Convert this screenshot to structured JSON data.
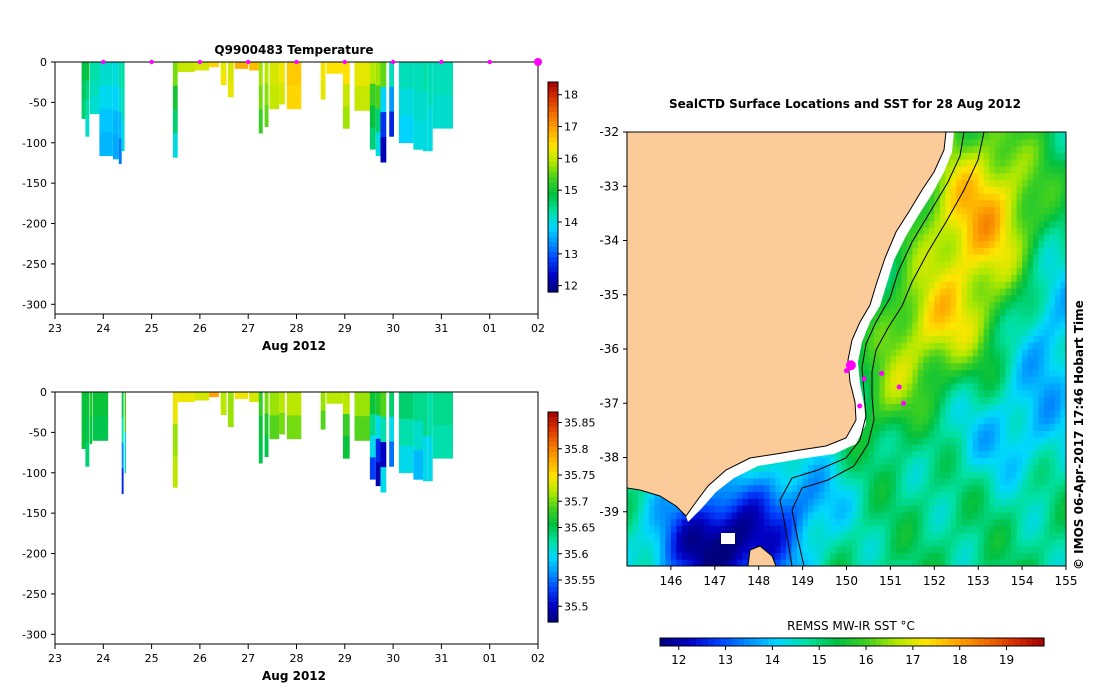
{
  "chart_data": [
    {
      "type": "heatmap",
      "title": "Q9900483  Temperature",
      "xlabel": "Aug 2012",
      "ylabel": "",
      "x_tick_labels": [
        "23",
        "24",
        "25",
        "26",
        "27",
        "28",
        "29",
        "30",
        "31",
        "01",
        "02"
      ],
      "x_days": [
        23,
        24,
        25,
        26,
        27,
        28,
        29,
        30,
        31,
        32,
        33
      ],
      "xlim": [
        23,
        33
      ],
      "y_tick_labels": [
        "0",
        "-50",
        "-100",
        "-150",
        "-200",
        "-250",
        "-300"
      ],
      "y_ticks": [
        0,
        -50,
        -100,
        -150,
        -200,
        -250,
        -300
      ],
      "ylim": [
        -312,
        0
      ],
      "profile_markers_day": [
        24,
        25,
        26,
        27,
        28,
        29,
        30,
        31,
        32,
        33
      ],
      "colorbar": {
        "tick_labels": [
          "12",
          "13",
          "14",
          "15",
          "16",
          "17",
          "18"
        ],
        "ticks": [
          12,
          13,
          14,
          15,
          16,
          17,
          18
        ],
        "range": [
          11.8,
          18.4
        ]
      },
      "profiles": [
        {
          "day": 23.55,
          "w": 0.08,
          "depth": 70,
          "values": [
            14.8,
            14.7,
            14.6
          ]
        },
        {
          "day": 23.63,
          "w": 0.08,
          "depth": 92,
          "values": [
            14.9,
            14.5,
            14.3,
            14.1
          ]
        },
        {
          "day": 23.72,
          "w": 0.2,
          "depth": 64,
          "values": [
            14.3,
            14.2,
            14.1
          ]
        },
        {
          "day": 23.92,
          "w": 0.28,
          "depth": 116,
          "values": [
            14.1,
            13.9,
            13.7,
            13.6
          ]
        },
        {
          "day": 24.2,
          "w": 0.12,
          "depth": 120,
          "values": [
            14.0,
            13.8,
            13.6,
            13.5
          ]
        },
        {
          "day": 24.32,
          "w": 0.06,
          "depth": 126,
          "values": [
            14.3,
            14.1,
            13.6,
            13.2
          ]
        },
        {
          "day": 24.38,
          "w": 0.06,
          "depth": 110,
          "values": [
            14.3,
            14.2,
            14.0
          ]
        },
        {
          "day": 25.44,
          "w": 0.1,
          "depth": 118,
          "values": [
            15.6,
            15.0,
            14.6,
            14.0
          ]
        },
        {
          "day": 25.54,
          "w": 0.35,
          "depth": 12,
          "values": [
            16.0
          ]
        },
        {
          "day": 25.89,
          "w": 0.3,
          "depth": 10,
          "values": [
            16.1
          ]
        },
        {
          "day": 26.19,
          "w": 0.2,
          "depth": 6,
          "values": [
            16.5
          ]
        },
        {
          "day": 26.43,
          "w": 0.12,
          "depth": 28,
          "values": [
            16.2,
            16.3
          ]
        },
        {
          "day": 26.58,
          "w": 0.12,
          "depth": 43,
          "values": [
            16.1,
            16.2
          ]
        },
        {
          "day": 26.72,
          "w": 0.28,
          "depth": 8,
          "values": [
            16.8
          ]
        },
        {
          "day": 27.02,
          "w": 0.2,
          "depth": 10,
          "values": [
            16.7
          ]
        },
        {
          "day": 27.22,
          "w": 0.08,
          "depth": 88,
          "values": [
            15.8,
            15.6,
            15.3
          ]
        },
        {
          "day": 27.34,
          "w": 0.08,
          "depth": 80,
          "values": [
            15.9,
            15.7,
            15.5
          ]
        },
        {
          "day": 27.44,
          "w": 0.2,
          "depth": 58,
          "values": [
            16.1,
            16.0
          ]
        },
        {
          "day": 27.64,
          "w": 0.12,
          "depth": 52,
          "values": [
            16.3,
            16.1
          ]
        },
        {
          "day": 27.8,
          "w": 0.3,
          "depth": 58,
          "values": [
            16.6,
            16.5
          ]
        },
        {
          "day": 28.5,
          "w": 0.1,
          "depth": 46,
          "values": [
            16.3,
            16.2
          ]
        },
        {
          "day": 28.62,
          "w": 0.34,
          "depth": 14,
          "values": [
            16.4
          ]
        },
        {
          "day": 28.96,
          "w": 0.14,
          "depth": 82,
          "values": [
            16.4,
            16.0,
            15.8
          ]
        },
        {
          "day": 29.2,
          "w": 0.32,
          "depth": 60,
          "values": [
            16.2,
            16.0
          ]
        },
        {
          "day": 29.52,
          "w": 0.12,
          "depth": 108,
          "values": [
            15.9,
            15.3,
            14.9,
            14.6
          ]
        },
        {
          "day": 29.64,
          "w": 0.1,
          "depth": 116,
          "values": [
            15.8,
            15.4,
            14.6,
            14.0
          ]
        },
        {
          "day": 29.74,
          "w": 0.12,
          "depth": 124,
          "values": [
            15.5,
            13.8,
            12.7,
            12.2
          ]
        },
        {
          "day": 29.92,
          "w": 0.1,
          "depth": 92,
          "values": [
            14.2,
            13.4,
            12.6
          ]
        },
        {
          "day": 30.12,
          "w": 0.3,
          "depth": 100,
          "values": [
            14.2,
            14.0,
            13.8
          ]
        },
        {
          "day": 30.42,
          "w": 0.2,
          "depth": 108,
          "values": [
            14.2,
            14.1,
            14.0
          ]
        },
        {
          "day": 30.62,
          "w": 0.1,
          "depth": 110,
          "values": [
            14.3,
            14.1,
            14.0
          ]
        },
        {
          "day": 30.72,
          "w": 0.1,
          "depth": 110,
          "values": [
            14.2,
            14.0
          ]
        },
        {
          "day": 30.82,
          "w": 0.42,
          "depth": 82,
          "values": [
            14.2,
            14.1
          ]
        }
      ]
    },
    {
      "type": "heatmap",
      "title": "",
      "xlabel": "Aug 2012",
      "ylabel": "",
      "x_tick_labels": [
        "23",
        "24",
        "25",
        "26",
        "27",
        "28",
        "29",
        "30",
        "31",
        "01",
        "02"
      ],
      "x_days": [
        23,
        24,
        25,
        26,
        27,
        28,
        29,
        30,
        31,
        32,
        33
      ],
      "xlim": [
        23,
        33
      ],
      "y_tick_labels": [
        "0",
        "-50",
        "-100",
        "-150",
        "-200",
        "-250",
        "-300"
      ],
      "y_ticks": [
        0,
        -50,
        -100,
        -150,
        -200,
        -250,
        -300
      ],
      "ylim": [
        -312,
        0
      ],
      "colorbar": {
        "tick_labels": [
          "35.5",
          "35.55",
          "35.6",
          "35.65",
          "35.7",
          "35.75",
          "35.8",
          "35.85"
        ],
        "ticks": [
          35.5,
          35.55,
          35.6,
          35.65,
          35.7,
          35.75,
          35.8,
          35.85
        ],
        "range": [
          35.47,
          35.87
        ]
      },
      "profiles": [
        {
          "day": 23.55,
          "w": 0.08,
          "depth": 70,
          "values": [
            35.66,
            35.66
          ]
        },
        {
          "day": 23.63,
          "w": 0.08,
          "depth": 92,
          "values": [
            35.66,
            35.65,
            35.64
          ]
        },
        {
          "day": 23.72,
          "w": 0.05,
          "depth": 64,
          "values": [
            35.67,
            35.66
          ]
        },
        {
          "day": 23.78,
          "w": 0.32,
          "depth": 60,
          "values": [
            35.66,
            35.65
          ]
        },
        {
          "day": 24.38,
          "w": 0.04,
          "depth": 126,
          "values": [
            35.65,
            35.62,
            35.56,
            35.52
          ]
        },
        {
          "day": 24.44,
          "w": 0.03,
          "depth": 100,
          "values": [
            35.69,
            35.6
          ]
        },
        {
          "day": 25.44,
          "w": 0.1,
          "depth": 118,
          "values": [
            35.74,
            35.71,
            35.72
          ]
        },
        {
          "day": 25.54,
          "w": 0.35,
          "depth": 12,
          "values": [
            35.74
          ]
        },
        {
          "day": 25.89,
          "w": 0.3,
          "depth": 10,
          "values": [
            35.73
          ]
        },
        {
          "day": 26.19,
          "w": 0.2,
          "depth": 6,
          "values": [
            35.78
          ]
        },
        {
          "day": 26.43,
          "w": 0.12,
          "depth": 28,
          "values": [
            35.72
          ]
        },
        {
          "day": 26.58,
          "w": 0.12,
          "depth": 43,
          "values": [
            35.71
          ]
        },
        {
          "day": 26.72,
          "w": 0.28,
          "depth": 8,
          "values": [
            35.74
          ]
        },
        {
          "day": 27.02,
          "w": 0.2,
          "depth": 12,
          "values": [
            35.73
          ]
        },
        {
          "day": 27.22,
          "w": 0.08,
          "depth": 88,
          "values": [
            35.68,
            35.66,
            35.65
          ]
        },
        {
          "day": 27.34,
          "w": 0.08,
          "depth": 80,
          "values": [
            35.7,
            35.67,
            35.65
          ]
        },
        {
          "day": 27.44,
          "w": 0.2,
          "depth": 58,
          "values": [
            35.71,
            35.69
          ]
        },
        {
          "day": 27.64,
          "w": 0.12,
          "depth": 52,
          "values": [
            35.72,
            35.7
          ]
        },
        {
          "day": 27.8,
          "w": 0.3,
          "depth": 58,
          "values": [
            35.72,
            35.7
          ]
        },
        {
          "day": 28.5,
          "w": 0.1,
          "depth": 46,
          "values": [
            35.71,
            35.69
          ]
        },
        {
          "day": 28.62,
          "w": 0.34,
          "depth": 14,
          "values": [
            35.72
          ]
        },
        {
          "day": 28.96,
          "w": 0.14,
          "depth": 82,
          "values": [
            35.72,
            35.68,
            35.66
          ]
        },
        {
          "day": 29.2,
          "w": 0.32,
          "depth": 60,
          "values": [
            35.71,
            35.69
          ]
        },
        {
          "day": 29.52,
          "w": 0.12,
          "depth": 108,
          "values": [
            35.66,
            35.63,
            35.6,
            35.53
          ]
        },
        {
          "day": 29.64,
          "w": 0.1,
          "depth": 116,
          "values": [
            35.67,
            35.6,
            35.52,
            35.49
          ]
        },
        {
          "day": 29.74,
          "w": 0.12,
          "depth": 124,
          "values": [
            35.69,
            35.62,
            35.5,
            35.6
          ]
        },
        {
          "day": 29.92,
          "w": 0.1,
          "depth": 92,
          "values": [
            35.64,
            35.6,
            35.55
          ]
        },
        {
          "day": 30.12,
          "w": 0.3,
          "depth": 100,
          "values": [
            35.64,
            35.62,
            35.6
          ]
        },
        {
          "day": 30.42,
          "w": 0.2,
          "depth": 108,
          "values": [
            35.63,
            35.61,
            35.58
          ]
        },
        {
          "day": 30.62,
          "w": 0.1,
          "depth": 110,
          "values": [
            35.63,
            35.6
          ]
        },
        {
          "day": 30.72,
          "w": 0.1,
          "depth": 110,
          "values": [
            35.62,
            35.6
          ]
        },
        {
          "day": 30.82,
          "w": 0.42,
          "depth": 82,
          "values": [
            35.63,
            35.62
          ]
        }
      ]
    },
    {
      "type": "heatmap",
      "title": "SealCTD Surface Locations and SST for 28 Aug 2012",
      "xlabel": "",
      "ylabel": "",
      "x_tick_labels": [
        "146",
        "147",
        "148",
        "149",
        "150",
        "151",
        "152",
        "153",
        "154",
        "155"
      ],
      "x_ticks": [
        146,
        147,
        148,
        149,
        150,
        151,
        152,
        153,
        154,
        155
      ],
      "xlim": [
        145.0,
        155.0
      ],
      "y_tick_labels": [
        "-32",
        "-33",
        "-34",
        "-35",
        "-36",
        "-37",
        "-38",
        "-39"
      ],
      "y_ticks": [
        -32,
        -33,
        -34,
        -35,
        -36,
        -37,
        -38,
        -39
      ],
      "ylim": [
        -40.0,
        -32.0
      ],
      "colorbar": {
        "label": "REMSS MW-IR SST °C",
        "tick_labels": [
          "12",
          "13",
          "14",
          "15",
          "16",
          "17",
          "18",
          "19"
        ],
        "ticks": [
          12,
          13,
          14,
          15,
          16,
          17,
          18,
          19
        ],
        "range": [
          11.6,
          19.8
        ]
      },
      "seal_locations": [
        {
          "lon": 150.1,
          "lat": -36.3,
          "size": "large"
        },
        {
          "lon": 150.0,
          "lat": -36.4,
          "size": "small"
        },
        {
          "lon": 150.4,
          "lat": -36.55,
          "size": "small"
        },
        {
          "lon": 150.8,
          "lat": -36.45,
          "size": "small"
        },
        {
          "lon": 151.2,
          "lat": -36.7,
          "size": "small"
        },
        {
          "lon": 151.3,
          "lat": -37.0,
          "size": "small"
        },
        {
          "lon": 150.3,
          "lat": -37.05,
          "size": "small"
        }
      ]
    }
  ],
  "credit": "© IMOS 06-Apr-2017 17:46 Hobart Time",
  "colors": {
    "land": "#fbcb9a",
    "marker": "#ff00ff",
    "colormap": [
      "#00007f",
      "#0000c4",
      "#0040ff",
      "#0090ff",
      "#00d8ff",
      "#00e0a0",
      "#00c040",
      "#40d020",
      "#b0e800",
      "#ffe600",
      "#ffa800",
      "#f07000",
      "#d83000",
      "#a00000"
    ]
  }
}
